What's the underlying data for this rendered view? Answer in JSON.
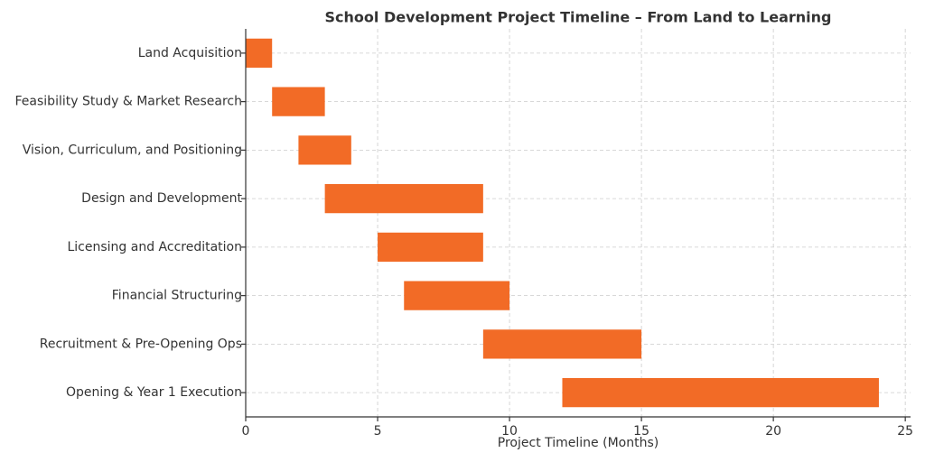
{
  "chart_data": {
    "type": "gantt",
    "title": "School Development Project Timeline – From Land to Learning",
    "x_label": "Project Timeline (Months)",
    "categories": [
      "Land Acquisition",
      "Feasibility Study & Market Research",
      "Vision, Curriculum, and Positioning",
      "Design and Development",
      "Licensing and Accreditation",
      "Financial Structuring",
      "Recruitment & Pre-Opening Ops",
      "Opening & Year 1 Execution"
    ],
    "starts": [
      0,
      1,
      2,
      3,
      5,
      6,
      9,
      12
    ],
    "ends": [
      1,
      3,
      4,
      9,
      9,
      10,
      15,
      24
    ],
    "color": "#f26b26",
    "xlim": [
      0,
      25.2
    ],
    "xticks": [
      0,
      5,
      10,
      15,
      20,
      25
    ],
    "grid": true
  }
}
